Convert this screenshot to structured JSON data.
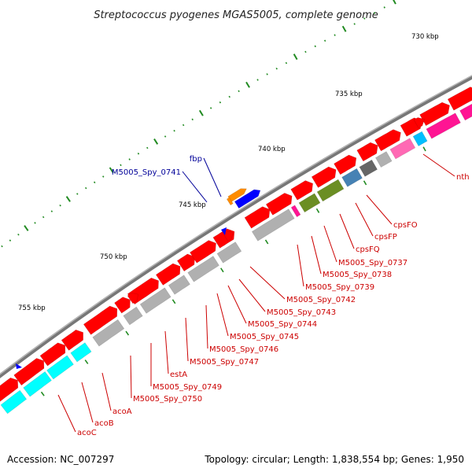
{
  "title": "Streptococcus pyogenes MGAS5005, complete genome",
  "footer": {
    "accession": "Accession: NC_007297",
    "summary": "Topology: circular; Length: 1,838,554 bp; Genes: 1,950"
  },
  "ticks": [
    {
      "label": "730 kbp",
      "pos": 730000
    },
    {
      "label": "735 kbp",
      "pos": 735000
    },
    {
      "label": "740 kbp",
      "pos": 740000
    },
    {
      "label": "745 kbp",
      "pos": 745000
    },
    {
      "label": "750 kbp",
      "pos": 750000
    },
    {
      "label": "755 kbp",
      "pos": 755000
    }
  ],
  "colors": {
    "cds": "#ff0000",
    "cog_gray": "#b0b0b0",
    "cog_cyan": "#00ffff",
    "cog_olive": "#6b8e23",
    "cog_magenta": "#ff1493",
    "cog_sky": "#00bfff",
    "cog_steel": "#4682b4",
    "cog_darkgray": "#666666",
    "cog_pink": "#ff69b4",
    "gene_orange": "#ff8c00",
    "gene_blue": "#0000ff",
    "label_red": "#cc0000",
    "label_blue": "#000099",
    "backbone": "#777777",
    "tick": "#228b22"
  },
  "genes": [
    {
      "label": "nth",
      "color": "label_red"
    },
    {
      "label": "cpsFO",
      "color": "label_red"
    },
    {
      "label": "cpsFP",
      "color": "label_red"
    },
    {
      "label": "cpsFQ",
      "color": "label_red"
    },
    {
      "label": "M5005_Spy_0737",
      "color": "label_red"
    },
    {
      "label": "M5005_Spy_0738",
      "color": "label_red"
    },
    {
      "label": "M5005_Spy_0739",
      "color": "label_red"
    },
    {
      "label": "M5005_Spy_0742",
      "color": "label_red"
    },
    {
      "label": "M5005_Spy_0743",
      "color": "label_red"
    },
    {
      "label": "M5005_Spy_0744",
      "color": "label_red"
    },
    {
      "label": "M5005_Spy_0745",
      "color": "label_red"
    },
    {
      "label": "M5005_Spy_0746",
      "color": "label_red"
    },
    {
      "label": "M5005_Spy_0747",
      "color": "label_red"
    },
    {
      "label": "estA",
      "color": "label_red"
    },
    {
      "label": "M5005_Spy_0749",
      "color": "label_red"
    },
    {
      "label": "M5005_Spy_0750",
      "color": "label_red"
    },
    {
      "label": "acoA",
      "color": "label_red"
    },
    {
      "label": "acoB",
      "color": "label_red"
    },
    {
      "label": "acoC",
      "color": "label_red"
    },
    {
      "label": "fbp",
      "color": "label_blue"
    },
    {
      "label": "M5005_Spy_0741",
      "color": "label_blue"
    }
  ]
}
